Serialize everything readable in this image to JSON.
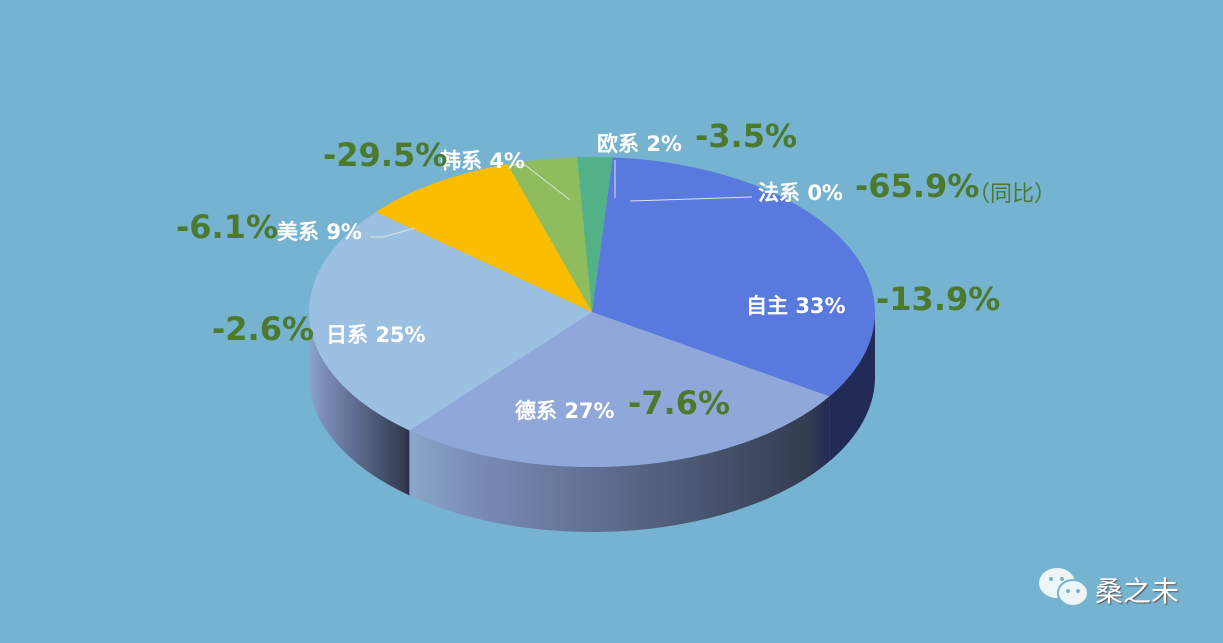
{
  "chart_data": {
    "type": "pie",
    "style": "3d",
    "slices": [
      {
        "label": "自主",
        "value": 33,
        "pct_label": "33%",
        "yoy": "-13.9%",
        "color": "#5a79de"
      },
      {
        "label": "德系",
        "value": 27,
        "pct_label": "27%",
        "yoy": "-7.6%",
        "color": "#8fa7d9"
      },
      {
        "label": "日系",
        "value": 25,
        "pct_label": "25%",
        "yoy": "-2.6%",
        "color": "#9bc0e2"
      },
      {
        "label": "美系",
        "value": 9,
        "pct_label": "9%",
        "yoy": "-6.1%",
        "color": "#fbbd00"
      },
      {
        "label": "韩系",
        "value": 4,
        "pct_label": "4%",
        "yoy": "-29.5%",
        "color": "#8fbd5e"
      },
      {
        "label": "欧系",
        "value": 2,
        "pct_label": "2%",
        "yoy": "-3.5%",
        "color": "#52b186"
      },
      {
        "label": "法系",
        "value": 0,
        "pct_label": "0%",
        "yoy": "-65.9%",
        "color": "#6fa0d0"
      }
    ],
    "note": "（同比）",
    "background": "#76b3d0"
  },
  "watermark": {
    "icon": "wechat-icon",
    "text": "桑之未"
  }
}
